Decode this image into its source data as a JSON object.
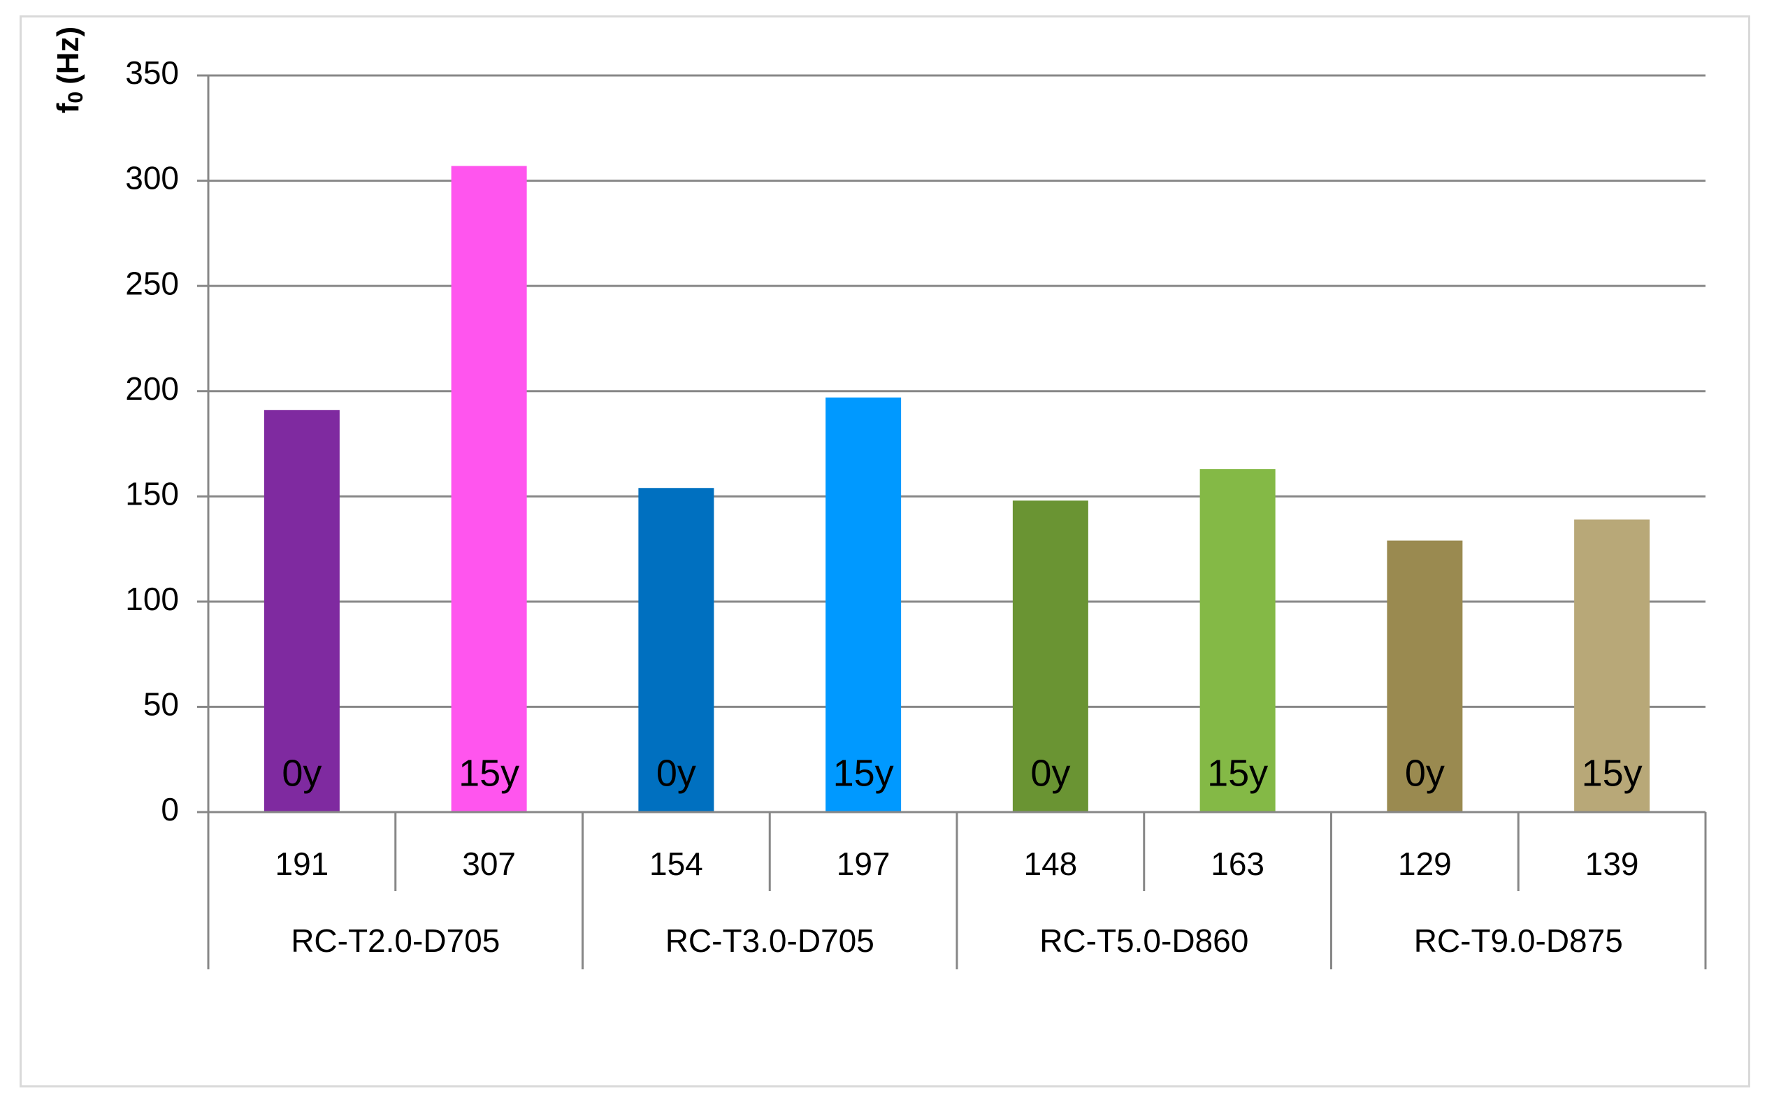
{
  "chart_data": {
    "type": "bar",
    "title": "",
    "ylabel_main": "f",
    "ylabel_sub": "0",
    "ylabel_unit": "(Hz)",
    "ylim": [
      0,
      350
    ],
    "yticks": [
      0,
      50,
      100,
      150,
      200,
      250,
      300,
      350
    ],
    "ytick_labels": [
      "0",
      "50",
      "100",
      "150",
      "200",
      "250",
      "300",
      "350"
    ],
    "grid": true,
    "groups": [
      "RC-T2.0-D705",
      "RC-T3.0-D705",
      "RC-T5.0-D860",
      "RC-T9.0-D875"
    ],
    "bar_labels": [
      "0y",
      "15y",
      "0y",
      "15y",
      "0y",
      "15y",
      "0y",
      "15y"
    ],
    "categories": [
      "191",
      "307",
      "154",
      "197",
      "148",
      "163",
      "129",
      "139"
    ],
    "values": [
      191,
      307,
      154,
      197,
      148,
      163,
      129,
      139
    ],
    "colors": [
      "#7f2aa0",
      "#ff55ee",
      "#0070c0",
      "#0099ff",
      "#6a9433",
      "#84b946",
      "#9a8a50",
      "#b8a878"
    ],
    "axis_color": "#878787",
    "grid_color": "#878787"
  }
}
